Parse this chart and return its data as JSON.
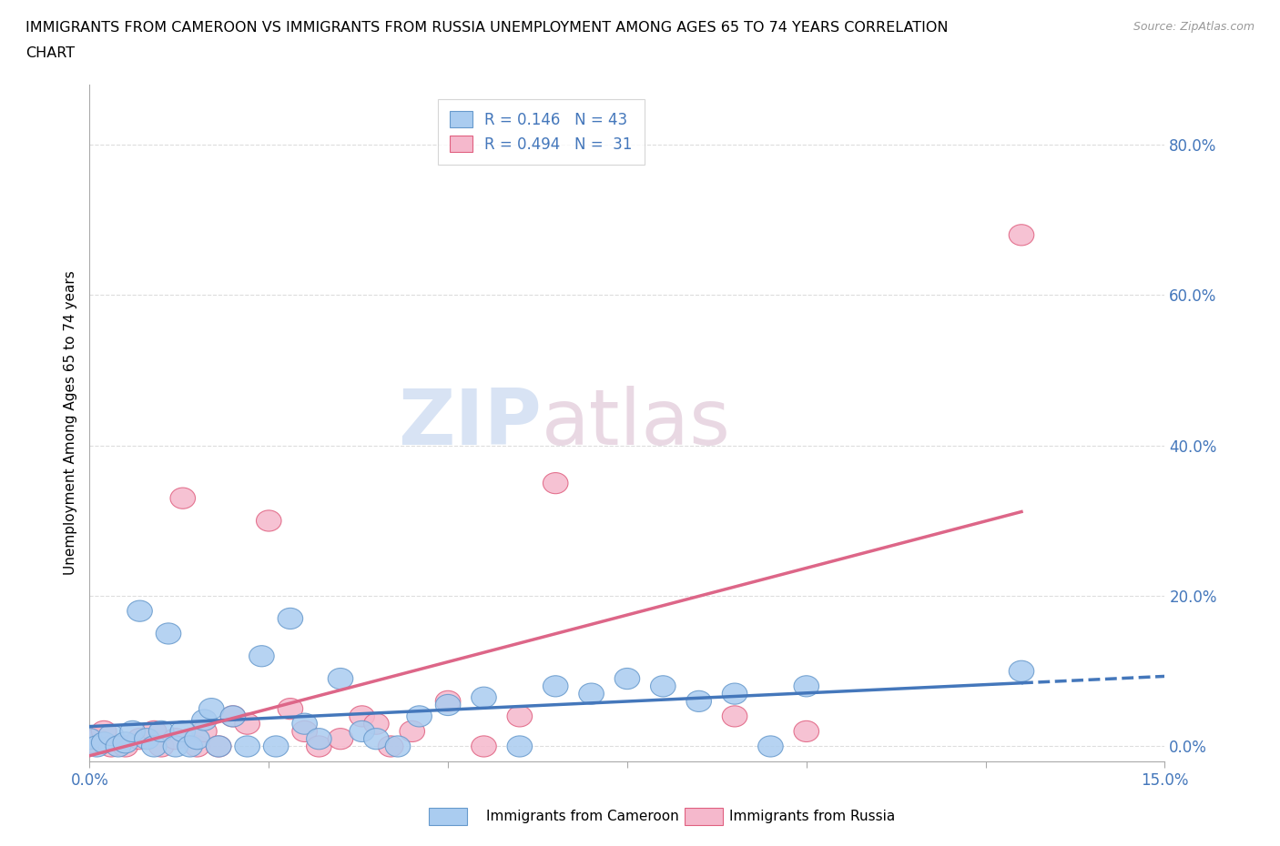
{
  "title_line1": "IMMIGRANTS FROM CAMEROON VS IMMIGRANTS FROM RUSSIA UNEMPLOYMENT AMONG AGES 65 TO 74 YEARS CORRELATION",
  "title_line2": "CHART",
  "source": "Source: ZipAtlas.com",
  "ylabel": "Unemployment Among Ages 65 to 74 years",
  "xlim": [
    0.0,
    0.15
  ],
  "ylim": [
    -0.02,
    0.88
  ],
  "xticks": [
    0.0,
    0.025,
    0.05,
    0.075,
    0.1,
    0.125,
    0.15
  ],
  "yticks": [
    0.0,
    0.2,
    0.4,
    0.6,
    0.8
  ],
  "ytick_labels": [
    "0.0%",
    "20.0%",
    "40.0%",
    "60.0%",
    "80.0%"
  ],
  "xtick_labels_bottom": [
    "0.0%",
    "",
    "",
    "",
    "",
    "",
    "15.0%"
  ],
  "watermark_zip": "ZIP",
  "watermark_atlas": "atlas",
  "cameroon_color": "#aaccf0",
  "russia_color": "#f5b8cc",
  "cameroon_edge_color": "#6699cc",
  "russia_edge_color": "#e06080",
  "cameroon_line_color": "#4477bb",
  "russia_line_color": "#dd6688",
  "r_cameroon": "0.146",
  "n_cameroon": "43",
  "r_russia": "0.494",
  "n_russia": "31",
  "legend_label_cameroon": "Immigrants from Cameroon",
  "legend_label_russia": "Immigrants from Russia",
  "cameroon_x": [
    0.0,
    0.001,
    0.002,
    0.003,
    0.004,
    0.005,
    0.006,
    0.007,
    0.008,
    0.009,
    0.01,
    0.011,
    0.012,
    0.013,
    0.014,
    0.015,
    0.016,
    0.017,
    0.018,
    0.02,
    0.022,
    0.024,
    0.026,
    0.028,
    0.03,
    0.032,
    0.035,
    0.038,
    0.04,
    0.043,
    0.046,
    0.05,
    0.055,
    0.06,
    0.065,
    0.07,
    0.075,
    0.08,
    0.085,
    0.09,
    0.095,
    0.1,
    0.13
  ],
  "cameroon_y": [
    0.01,
    0.0,
    0.005,
    0.015,
    0.0,
    0.005,
    0.02,
    0.18,
    0.01,
    0.0,
    0.02,
    0.15,
    0.0,
    0.02,
    0.0,
    0.01,
    0.035,
    0.05,
    0.0,
    0.04,
    0.0,
    0.12,
    0.0,
    0.17,
    0.03,
    0.01,
    0.09,
    0.02,
    0.01,
    0.0,
    0.04,
    0.055,
    0.065,
    0.0,
    0.08,
    0.07,
    0.09,
    0.08,
    0.06,
    0.07,
    0.0,
    0.08,
    0.1
  ],
  "russia_x": [
    0.0,
    0.001,
    0.002,
    0.003,
    0.005,
    0.007,
    0.009,
    0.01,
    0.012,
    0.013,
    0.015,
    0.016,
    0.018,
    0.02,
    0.022,
    0.025,
    0.028,
    0.03,
    0.032,
    0.035,
    0.038,
    0.04,
    0.042,
    0.045,
    0.05,
    0.055,
    0.06,
    0.065,
    0.09,
    0.1,
    0.13
  ],
  "russia_y": [
    0.005,
    0.01,
    0.02,
    0.0,
    0.0,
    0.01,
    0.02,
    0.0,
    0.01,
    0.33,
    0.0,
    0.02,
    0.0,
    0.04,
    0.03,
    0.3,
    0.05,
    0.02,
    0.0,
    0.01,
    0.04,
    0.03,
    0.0,
    0.02,
    0.06,
    0.0,
    0.04,
    0.35,
    0.04,
    0.02,
    0.68
  ],
  "blue_text_color": "#4477bb",
  "grid_color": "#dddddd"
}
